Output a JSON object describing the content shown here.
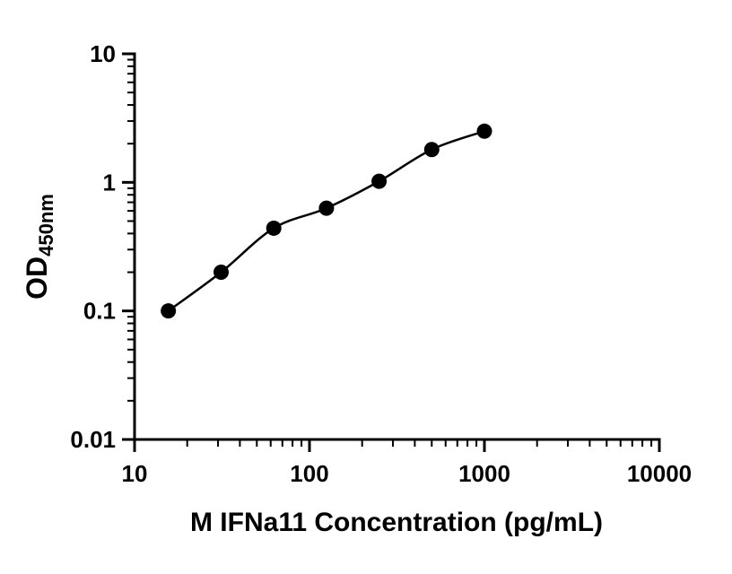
{
  "chart_data": {
    "type": "scatter",
    "title": "",
    "x": [
      15.6,
      31.25,
      62.5,
      125,
      250,
      500,
      1000
    ],
    "y": [
      0.1,
      0.2,
      0.44,
      0.63,
      1.02,
      1.8,
      2.5
    ],
    "xlabel": "M IFNa11 Concentration (pg/mL)",
    "ylabel": "OD",
    "ylabel_subscript": "450nm",
    "xscale": "log",
    "yscale": "log",
    "xlim": [
      10,
      10000
    ],
    "ylim": [
      0.01,
      10
    ],
    "x_ticks": [
      10,
      100,
      1000,
      10000
    ],
    "y_ticks": [
      0.01,
      0.1,
      1,
      10
    ],
    "grid": "off",
    "legend": "none",
    "marker_color": "#000000",
    "line_color": "#000000",
    "axis_color": "#000000",
    "background_color": "#ffffff",
    "marker_radius": 8.5
  }
}
